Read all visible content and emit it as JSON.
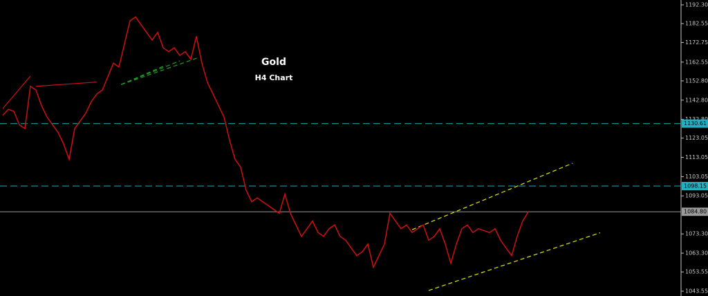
{
  "chart_data": {
    "type": "line",
    "title": "Gold",
    "subtitle": "H4 Chart",
    "categories": [
      null,
      null,
      null,
      null,
      null,
      null,
      null,
      null,
      null,
      null,
      null,
      null,
      null,
      null,
      null,
      null,
      null,
      null,
      null,
      null,
      null,
      null,
      null,
      null,
      null,
      null,
      null,
      null,
      null,
      null,
      null,
      null,
      null,
      null,
      null,
      null,
      null,
      null,
      null,
      null,
      null,
      null,
      null,
      null,
      null,
      null,
      null,
      null,
      null,
      null,
      null,
      null,
      null,
      null,
      null,
      null,
      null,
      null,
      null,
      null,
      null,
      null,
      null,
      null,
      null,
      null,
      null,
      null,
      null,
      null,
      null,
      null,
      null,
      null,
      null,
      null,
      null,
      null,
      null,
      null,
      null,
      null,
      null,
      null,
      null,
      null,
      null,
      null,
      null,
      null,
      null,
      null,
      null,
      null,
      null,
      null
    ],
    "series": [
      {
        "color": "#d01010",
        "values": [
          1135,
          1138,
          1137,
          1130,
          1128,
          1150,
          1148,
          1140,
          1134,
          1130,
          1126,
          1120,
          1112,
          1128,
          1132,
          1136,
          1142,
          1146,
          1148,
          1155,
          1162,
          1160,
          1172,
          1184,
          1186,
          1182,
          1178,
          1174,
          1178,
          1170,
          1168,
          1170,
          1166,
          1168,
          1164,
          1176,
          1162,
          1152,
          1146,
          1140,
          1134,
          1122,
          1112,
          1108,
          1096,
          1090,
          1092,
          1090,
          1088,
          1086,
          1084,
          1094,
          1084,
          1078,
          1072,
          1076,
          1080,
          1074,
          1072,
          1076,
          1078,
          1072,
          1070,
          1066,
          1062,
          1064,
          1068,
          1056,
          1062,
          1068,
          1084,
          1080,
          1076,
          1078,
          1074,
          1076,
          1078,
          1070,
          1072,
          1076,
          1068,
          1058,
          1068,
          1076,
          1078,
          1074,
          1076,
          1075,
          1074,
          1076,
          1070,
          1066,
          1062,
          1072,
          1080,
          1084.8
        ]
      }
    ],
    "ylim": [
      1043.55,
      1192.3
    ],
    "yticks": [
      {
        "value": 1192.3,
        "label": "1192.30"
      },
      {
        "value": 1182.55,
        "label": "1182.55"
      },
      {
        "value": 1172.75,
        "label": "1172.75"
      },
      {
        "value": 1162.55,
        "label": "1162.55"
      },
      {
        "value": 1152.8,
        "label": "1152.80"
      },
      {
        "value": 1142.8,
        "label": "1142.80"
      },
      {
        "value": 1132.8,
        "label": "1132.80"
      },
      {
        "value": 1123.05,
        "label": "1123.05"
      },
      {
        "value": 1113.05,
        "label": "1113.05"
      },
      {
        "value": 1103.05,
        "label": "1103.05"
      },
      {
        "value": 1093.05,
        "label": "1093.05"
      },
      {
        "value": 1073.3,
        "label": "1073.30"
      },
      {
        "value": 1063.3,
        "label": "1063.30"
      },
      {
        "value": 1053.55,
        "label": "1053.55"
      },
      {
        "value": 1043.55,
        "label": "1043.55"
      }
    ],
    "hlines": [
      {
        "value": 1130.61,
        "label": "1130.61",
        "color": "#20b0c0",
        "dashed": true
      },
      {
        "value": 1098.15,
        "label": "1098.15",
        "color": "#20b0c0",
        "dashed": true
      },
      {
        "value": 1084.8,
        "label": "1084.80",
        "color": "#9a9a9a",
        "dashed": false
      }
    ],
    "trendlines": [
      {
        "x": [
          74,
          103
        ],
        "y": [
          1075.5,
          1110
        ],
        "color": "#e6e600",
        "dashed": true
      },
      {
        "x": [
          77,
          108
        ],
        "y": [
          1043.9,
          1073.9
        ],
        "color": "#e6e600",
        "dashed": true
      },
      {
        "x": [
          0,
          5
        ],
        "y": [
          1138.4,
          1155.3
        ],
        "color": "#d01010",
        "dashed": false
      },
      {
        "x": [
          6,
          17
        ],
        "y": [
          1150,
          1152.2
        ],
        "color": "#d01010",
        "dashed": false
      },
      {
        "x": [
          21.4,
          29.5
        ],
        "y": [
          1150.9,
          1161
        ],
        "color": "#20a020",
        "dashed": true
      },
      {
        "x": [
          21.4,
          32
        ],
        "y": [
          1150.9,
          1163.2
        ],
        "color": "#20a020",
        "dashed": true
      },
      {
        "x": [
          21.4,
          35.1
        ],
        "y": [
          1150.9,
          1164.6
        ],
        "color": "#20a020",
        "dashed": true
      }
    ]
  }
}
